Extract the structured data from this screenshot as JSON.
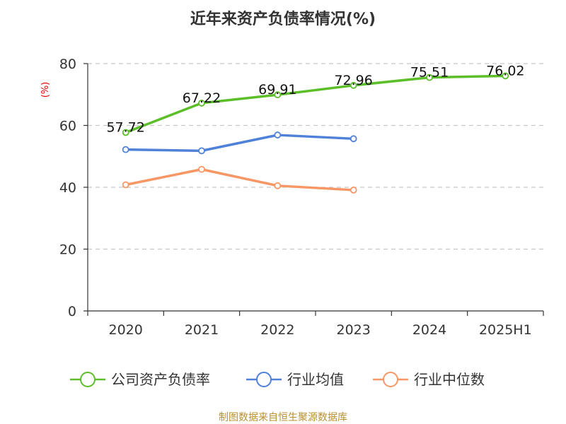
{
  "chart_data": {
    "type": "line",
    "title": "近年来资产负债率情况(%)",
    "ylabel": "(%)",
    "xlabel": "",
    "categories": [
      "2020",
      "2021",
      "2022",
      "2023",
      "2024",
      "2025H1"
    ],
    "ylim": [
      0,
      80
    ],
    "yticks": [
      0,
      20,
      40,
      60,
      80
    ],
    "grid": true,
    "legend_position": "bottom",
    "series": [
      {
        "name": "公司资产负债率",
        "color": "#5cbf2a",
        "values": [
          57.72,
          67.22,
          69.91,
          72.96,
          75.51,
          76.02
        ],
        "labels": [
          "57.72",
          "67.22",
          "69.91",
          "72.96",
          "75.51",
          "76.02"
        ]
      },
      {
        "name": "行业均值",
        "color": "#4f81d9",
        "values": [
          52.2,
          51.8,
          56.9,
          55.7,
          null,
          null
        ]
      },
      {
        "name": "行业中位数",
        "color": "#f79765",
        "values": [
          40.8,
          45.8,
          40.5,
          39.1,
          null,
          null
        ]
      }
    ]
  },
  "footer": {
    "source": "制图数据来自恒生聚源数据库"
  }
}
